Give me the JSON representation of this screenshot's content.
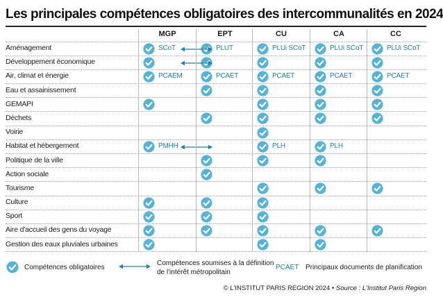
{
  "title": "Les  principales compétences obligatoires des intercommunalités en 2024",
  "columns": [
    "MGP",
    "EPT",
    "CU",
    "CA",
    "CC"
  ],
  "colors": {
    "accent": "#3aa6cf",
    "check_fill": "#56b3d8",
    "doc_text": "#1f7fa8"
  },
  "rows": [
    {
      "label": "Aménagement",
      "checks": [
        1,
        1,
        1,
        1,
        1
      ],
      "docs": [
        "SCoT",
        "PLUT",
        "PLUi SCoT",
        "PLUi SCoT",
        "PLUi SCoT"
      ],
      "arrow": true
    },
    {
      "label": "Développement économique",
      "checks": [
        1,
        1,
        1,
        1,
        1
      ],
      "docs": [
        "",
        "",
        "",
        "",
        ""
      ],
      "arrow": true
    },
    {
      "label": "Air, climat et énergie",
      "checks": [
        1,
        1,
        1,
        1,
        1
      ],
      "docs": [
        "PCAEM",
        "PCAET",
        "PCAET",
        "PCAET",
        "PCAET"
      ],
      "arrow": false
    },
    {
      "label": "Eau et assainissement",
      "checks": [
        0,
        1,
        1,
        1,
        1
      ],
      "docs": [
        "",
        "",
        "",
        "",
        ""
      ],
      "arrow": false
    },
    {
      "label": "GEMAPI",
      "checks": [
        1,
        0,
        1,
        1,
        1
      ],
      "docs": [
        "",
        "",
        "",
        "",
        ""
      ],
      "arrow": false
    },
    {
      "label": "Déchets",
      "checks": [
        0,
        1,
        1,
        1,
        1
      ],
      "docs": [
        "",
        "",
        "",
        "",
        ""
      ],
      "arrow": false
    },
    {
      "label": "Voirie",
      "checks": [
        0,
        0,
        1,
        0,
        0
      ],
      "docs": [
        "",
        "",
        "",
        "",
        ""
      ],
      "arrow": false
    },
    {
      "label": "Habitat et hébergement",
      "checks": [
        1,
        0,
        1,
        1,
        0
      ],
      "docs": [
        "PMHH",
        "",
        "PLH",
        "PLH",
        ""
      ],
      "arrow": true
    },
    {
      "label": "Politique de la ville",
      "checks": [
        0,
        1,
        1,
        1,
        0
      ],
      "docs": [
        "",
        "",
        "",
        "",
        ""
      ],
      "arrow": false
    },
    {
      "label": "Action sociale",
      "checks": [
        0,
        1,
        0,
        0,
        0
      ],
      "docs": [
        "",
        "",
        "",
        "",
        ""
      ],
      "arrow": false
    },
    {
      "label": "Tourisme",
      "checks": [
        0,
        0,
        1,
        1,
        1
      ],
      "docs": [
        "",
        "",
        "",
        "",
        ""
      ],
      "arrow": false
    },
    {
      "label": "Culture",
      "checks": [
        1,
        1,
        1,
        0,
        0
      ],
      "docs": [
        "",
        "",
        "",
        "",
        ""
      ],
      "arrow": false
    },
    {
      "label": "Sport",
      "checks": [
        1,
        1,
        1,
        0,
        0
      ],
      "docs": [
        "",
        "",
        "",
        "",
        ""
      ],
      "arrow": false
    },
    {
      "label": "Aire d'accueil des gens du voyage",
      "checks": [
        1,
        1,
        1,
        1,
        1
      ],
      "docs": [
        "",
        "",
        "",
        "",
        ""
      ],
      "arrow": false
    },
    {
      "label": "Gestion des eaux pluviales urbaines",
      "checks": [
        1,
        0,
        1,
        1,
        0
      ],
      "docs": [
        "",
        "",
        "",
        "",
        ""
      ],
      "arrow": false
    }
  ],
  "legend": {
    "mandatory": "Compétences obligatoires",
    "metropolitan_line1": "Compétences soumises à la définition",
    "metropolitan_line2": "de l'intérêt métropolitain",
    "doc_example": "PCAET",
    "doc_text": "Principaux documents de planification"
  },
  "footer": {
    "copyright": "© L'INSTITUT PARIS REGION 2024",
    "separator": "•",
    "source": "Source : L'Institut Paris Region"
  }
}
